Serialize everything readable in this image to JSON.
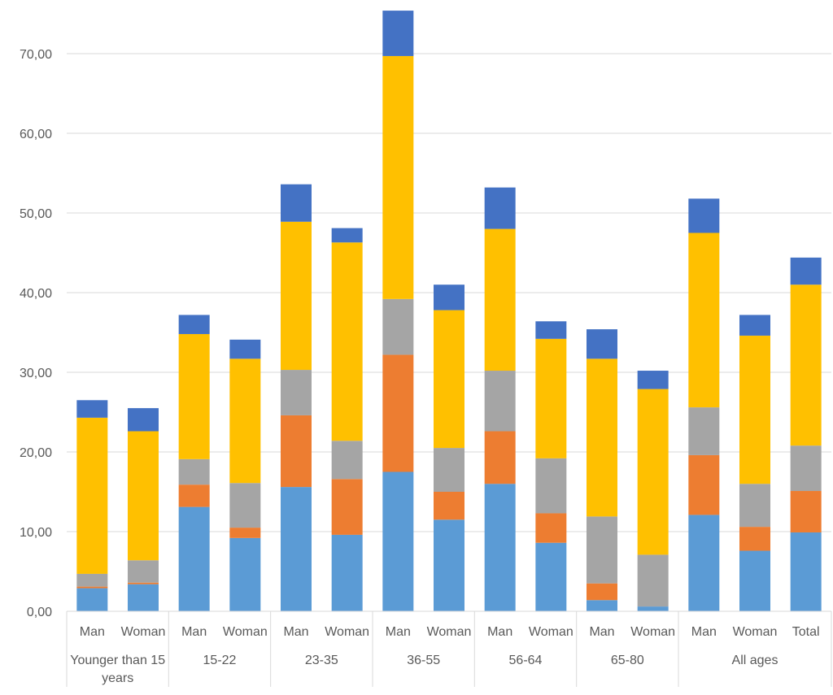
{
  "chart_data": {
    "type": "bar",
    "stacked": true,
    "title": "",
    "xlabel": "",
    "ylabel": "",
    "ylim": [
      0,
      75
    ],
    "yticks": [
      "0,00",
      "10,00",
      "20,00",
      "30,00",
      "40,00",
      "50,00",
      "60,00",
      "70,00"
    ],
    "ytick_values": [
      0,
      10,
      20,
      30,
      40,
      50,
      60,
      70
    ],
    "grid": true,
    "legend": "none",
    "categories": [
      "Man",
      "Woman",
      "Man",
      "Woman",
      "Man",
      "Woman",
      "Man",
      "Woman",
      "Man",
      "Woman",
      "Man",
      "Woman",
      "Man",
      "Woman",
      "Total"
    ],
    "groups": [
      {
        "label": "Younger than 15 years",
        "start": 0,
        "count": 2
      },
      {
        "label": "15-22",
        "start": 2,
        "count": 2
      },
      {
        "label": "23-35",
        "start": 4,
        "count": 2
      },
      {
        "label": "36-55",
        "start": 6,
        "count": 2
      },
      {
        "label": "56-64",
        "start": 8,
        "count": 2
      },
      {
        "label": "65-80",
        "start": 10,
        "count": 2
      },
      {
        "label": "All ages",
        "start": 12,
        "count": 3
      }
    ],
    "series": [
      {
        "color": "#5B9BD5",
        "values": [
          2.9,
          3.4,
          13.1,
          9.2,
          15.6,
          9.6,
          17.5,
          11.5,
          16.0,
          8.6,
          1.4,
          0.6,
          12.1,
          7.6,
          9.9
        ]
      },
      {
        "color": "#ED7D31",
        "values": [
          0.2,
          0.2,
          2.8,
          1.3,
          9.0,
          7.0,
          14.7,
          3.5,
          6.6,
          3.7,
          2.1,
          0.0,
          7.5,
          3.0,
          5.2
        ]
      },
      {
        "color": "#A5A5A5",
        "values": [
          1.6,
          2.8,
          3.2,
          5.6,
          5.7,
          4.8,
          7.0,
          5.5,
          7.6,
          6.9,
          8.4,
          6.5,
          6.0,
          5.4,
          5.7
        ]
      },
      {
        "color": "#FFC000",
        "values": [
          19.6,
          16.2,
          15.7,
          15.6,
          18.6,
          24.9,
          30.5,
          17.3,
          17.8,
          15.0,
          19.8,
          20.8,
          21.9,
          18.6,
          20.2
        ]
      },
      {
        "color": "#4472C4",
        "values": [
          2.2,
          2.9,
          2.4,
          2.4,
          4.7,
          1.8,
          5.7,
          3.2,
          5.2,
          2.2,
          3.7,
          2.3,
          4.3,
          2.6,
          3.4
        ]
      }
    ]
  }
}
